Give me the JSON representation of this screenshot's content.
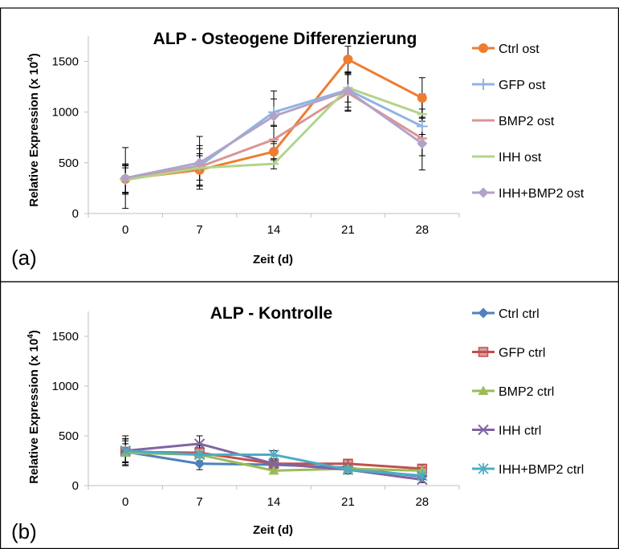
{
  "chart_data": [
    {
      "type": "line",
      "panel_label": "(a)",
      "title": "ALP - Osteogene Differenzierung",
      "xlabel": "Zeit (d)",
      "ylabel": "Relative Expression (x 10",
      "ylabel_sup": "4",
      "ylabel_close": ")",
      "x": [
        0,
        7,
        14,
        21,
        28
      ],
      "x_tick_labels": [
        "0",
        "7",
        "14",
        "21",
        "28"
      ],
      "y_ticks": [
        0,
        500,
        1000,
        1500
      ],
      "y_tick_labels": [
        "0",
        "500",
        "1000",
        "1500"
      ],
      "ylim": [
        0,
        1750
      ],
      "grid": false,
      "legend_position": "right",
      "error_bars": true,
      "series": [
        {
          "name": "Ctrl ost",
          "color": "#ed7d31",
          "marker": "circle",
          "values": [
            340,
            430,
            610,
            1520,
            1140
          ],
          "errors": [
            140,
            160,
            80,
            130,
            200
          ]
        },
        {
          "name": "GFP ost",
          "color": "#8fb4e3",
          "marker": "plus",
          "values": [
            340,
            470,
            1000,
            1220,
            860
          ],
          "errors": [
            130,
            200,
            130,
            170,
            170
          ]
        },
        {
          "name": "BMP2 ost",
          "color": "#d99594",
          "marker": "line",
          "values": [
            340,
            460,
            730,
            1190,
            740
          ],
          "errors": [
            150,
            180,
            130,
            180,
            170
          ]
        },
        {
          "name": "IHH ost",
          "color": "#b3d48c",
          "marker": "line",
          "values": [
            330,
            450,
            490,
            1240,
            980
          ],
          "errors": [
            120,
            120,
            50,
            140,
            200
          ]
        },
        {
          "name": "IHH+BMP2 ost",
          "color": "#b3a2c7",
          "marker": "diamond",
          "values": [
            350,
            500,
            960,
            1210,
            690
          ],
          "errors": [
            300,
            260,
            250,
            190,
            260
          ]
        }
      ]
    },
    {
      "type": "line",
      "panel_label": "(b)",
      "title": "ALP - Kontrolle",
      "xlabel": "Zeit (d)",
      "ylabel": "Relative Expression (x 10",
      "ylabel_sup": "4",
      "ylabel_close": ")",
      "x": [
        0,
        7,
        14,
        21,
        28
      ],
      "x_tick_labels": [
        "0",
        "7",
        "14",
        "21",
        "28"
      ],
      "y_ticks": [
        0,
        500,
        1000,
        1500
      ],
      "y_tick_labels": [
        "0",
        "500",
        "1000",
        "1500"
      ],
      "ylim": [
        0,
        1750
      ],
      "grid": false,
      "legend_position": "right",
      "error_bars": true,
      "series": [
        {
          "name": "Ctrl ctrl",
          "color": "#4f81bd",
          "marker": "diamond",
          "values": [
            340,
            220,
            210,
            180,
            90
          ],
          "errors": [
            110,
            60,
            40,
            40,
            30
          ]
        },
        {
          "name": "GFP ctrl",
          "color": "#c0504d",
          "marker": "square",
          "values": [
            340,
            330,
            220,
            220,
            170
          ],
          "errors": [
            130,
            80,
            40,
            40,
            40
          ]
        },
        {
          "name": "BMP2 ctrl",
          "color": "#9bbb59",
          "marker": "triangle",
          "values": [
            330,
            310,
            150,
            170,
            150
          ],
          "errors": [
            90,
            70,
            30,
            30,
            30
          ]
        },
        {
          "name": "IHH ctrl",
          "color": "#8064a2",
          "marker": "x",
          "values": [
            350,
            420,
            220,
            160,
            60
          ],
          "errors": [
            150,
            80,
            40,
            40,
            30
          ]
        },
        {
          "name": "IHH+BMP2 ctrl",
          "color": "#4bacc6",
          "marker": "star",
          "values": [
            350,
            310,
            310,
            160,
            100
          ],
          "errors": [
            120,
            90,
            40,
            40,
            30
          ]
        }
      ]
    }
  ]
}
